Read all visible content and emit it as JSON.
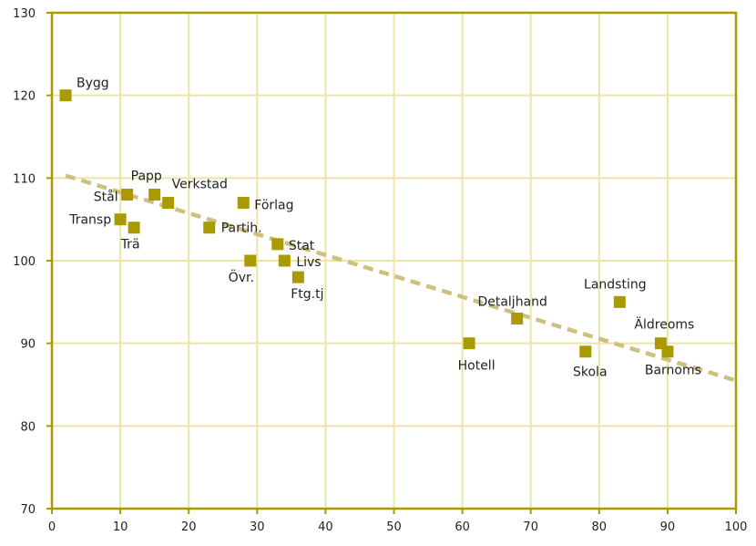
{
  "chart_data": {
    "type": "scatter",
    "title": "",
    "xlabel": "",
    "ylabel": "",
    "xlim": [
      0,
      100
    ],
    "ylim": [
      70,
      130
    ],
    "xticks": [
      0,
      10,
      20,
      30,
      40,
      50,
      60,
      70,
      80,
      90,
      100
    ],
    "yticks": [
      70,
      80,
      90,
      100,
      110,
      120,
      130
    ],
    "grid": true,
    "points": [
      {
        "label": "Bygg",
        "x": 2,
        "y": 120
      },
      {
        "label": "Stål",
        "x": 11,
        "y": 108
      },
      {
        "label": "Papp",
        "x": 15,
        "y": 108
      },
      {
        "label": "Verkstad",
        "x": 17,
        "y": 107
      },
      {
        "label": "Transp",
        "x": 10,
        "y": 105
      },
      {
        "label": "Trä",
        "x": 12,
        "y": 104
      },
      {
        "label": "Förlag",
        "x": 28,
        "y": 107
      },
      {
        "label": "Partih.",
        "x": 23,
        "y": 104
      },
      {
        "label": "Stat",
        "x": 33,
        "y": 102
      },
      {
        "label": "Livs",
        "x": 34,
        "y": 100
      },
      {
        "label": "Övr.",
        "x": 29,
        "y": 100
      },
      {
        "label": "Ftg.tj",
        "x": 36,
        "y": 98
      },
      {
        "label": "Hotell",
        "x": 61,
        "y": 90
      },
      {
        "label": "Detaljhand",
        "x": 68,
        "y": 93
      },
      {
        "label": "Skola",
        "x": 78,
        "y": 89
      },
      {
        "label": "Landsting",
        "x": 83,
        "y": 95
      },
      {
        "label": "Äldreoms",
        "x": 89,
        "y": 90
      },
      {
        "label": "Barnoms",
        "x": 90,
        "y": 89
      }
    ],
    "trendline": {
      "x": [
        2,
        100
      ],
      "y": [
        110.3,
        85.5
      ]
    },
    "colors": {
      "marker": "#A89A00",
      "frame": "#A89A00",
      "grid": "#EDE4A8",
      "trend": "#CEC17E",
      "text": "#222222"
    }
  }
}
